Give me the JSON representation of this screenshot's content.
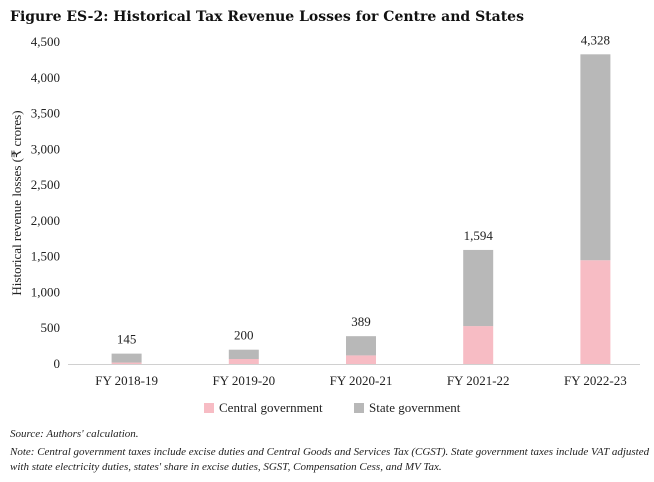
{
  "figure": {
    "title": "Figure ES-2: Historical Tax Revenue Losses for Centre and States",
    "source": "Source: Authors' calculation.",
    "note": "Note: Central government taxes include excise duties and Central Goods and Services Tax (CGST). State government taxes include VAT adjusted with state electricity duties, states' share in excise duties, SGST, Compensation Cess, and MV Tax."
  },
  "colors": {
    "central": "#f7bcc4",
    "state": "#b8b8b8",
    "axis": "#d0d0d0"
  },
  "chart_data": {
    "type": "bar",
    "stacked": true,
    "ylabel": "Historical revenue losses (₹ crores)",
    "xlabel": "",
    "ylim": [
      0,
      4500
    ],
    "yticks": [
      0,
      500,
      1000,
      1500,
      2000,
      2500,
      3000,
      3500,
      4000,
      4500
    ],
    "ytick_labels": [
      "0",
      "500",
      "1,000",
      "1,500",
      "2,000",
      "2,500",
      "3,000",
      "3,500",
      "4,000",
      "4,500"
    ],
    "categories": [
      "FY 2018-19",
      "FY 2019-20",
      "FY 2020-21",
      "FY 2021-22",
      "FY 2022-23"
    ],
    "series": [
      {
        "name": "Central government",
        "values": [
          20,
          70,
          120,
          530,
          1450
        ]
      },
      {
        "name": "State government",
        "values": [
          125,
          130,
          269,
          1064,
          2878
        ]
      }
    ],
    "totals": [
      145,
      200,
      389,
      1594,
      4328
    ],
    "total_labels": [
      "145",
      "200",
      "389",
      "1,594",
      "4,328"
    ],
    "legend_position": "bottom",
    "grid": false
  }
}
